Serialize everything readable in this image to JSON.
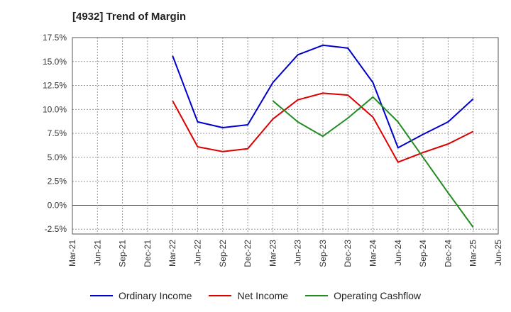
{
  "chart_data": {
    "type": "line",
    "title": "[4932]  Trend of Margin",
    "xlabel": "",
    "ylabel": "",
    "x": [
      "Mar-21",
      "Jun-21",
      "Sep-21",
      "Dec-21",
      "Mar-22",
      "Jun-22",
      "Sep-22",
      "Dec-22",
      "Mar-23",
      "Jun-23",
      "Sep-23",
      "Dec-23",
      "Mar-24",
      "Jun-24",
      "Sep-24",
      "Dec-24",
      "Mar-25",
      "Jun-25"
    ],
    "ylim": [
      -3.0,
      17.5
    ],
    "yticks": [
      17.5,
      15.0,
      12.5,
      10.0,
      7.5,
      5.0,
      2.5,
      0.0,
      -2.5
    ],
    "ytick_labels": [
      "17.5%",
      "15.0%",
      "12.5%",
      "10.0%",
      "7.5%",
      "5.0%",
      "2.5%",
      "0.0%",
      "-2.5%"
    ],
    "grid": true,
    "legend_position": "bottom",
    "series": [
      {
        "name": "Ordinary Income",
        "color": "#0000cc",
        "values": [
          null,
          null,
          null,
          null,
          15.6,
          8.7,
          8.1,
          8.4,
          12.8,
          15.7,
          16.7,
          16.4,
          12.8,
          6.0,
          7.4,
          8.7,
          11.1,
          null
        ]
      },
      {
        "name": "Net Income",
        "color": "#dd0000",
        "values": [
          null,
          null,
          null,
          null,
          10.9,
          6.1,
          5.6,
          5.9,
          9.0,
          11.0,
          11.7,
          11.5,
          9.2,
          4.5,
          5.5,
          6.4,
          7.7,
          null
        ]
      },
      {
        "name": "Operating Cashflow",
        "color": "#228b22",
        "values": [
          null,
          null,
          null,
          null,
          null,
          null,
          null,
          null,
          10.9,
          8.7,
          7.2,
          9.1,
          11.3,
          8.7,
          5.0,
          1.3,
          -2.3,
          null
        ]
      }
    ]
  }
}
